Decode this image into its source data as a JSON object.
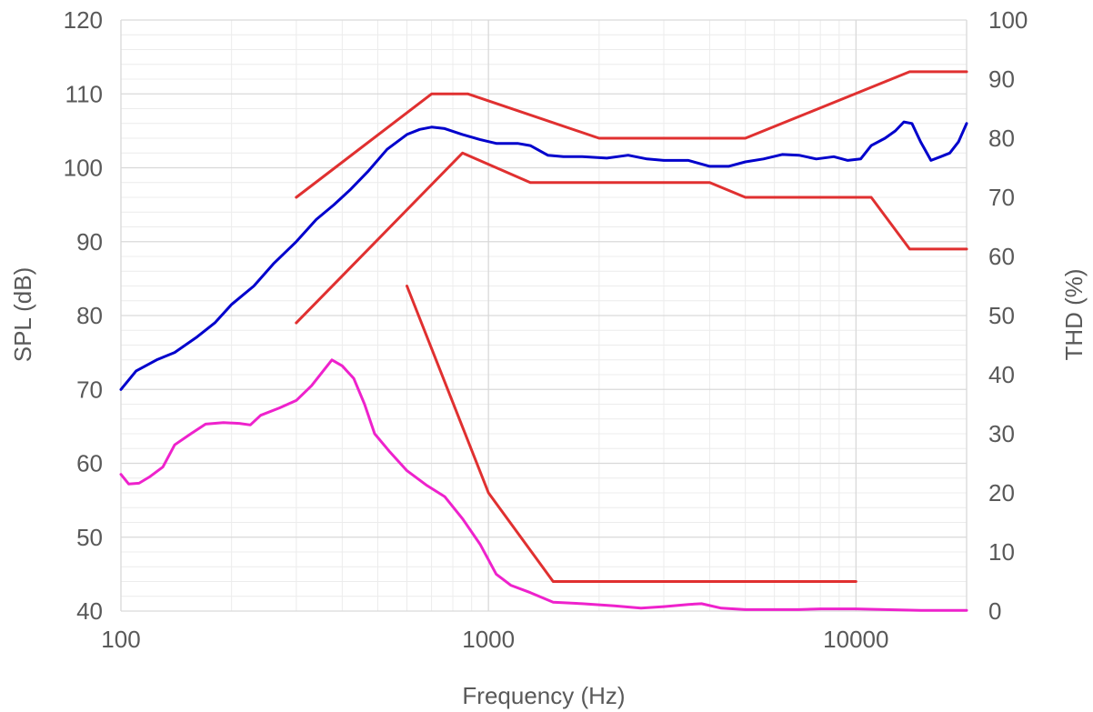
{
  "chart_data": {
    "type": "line",
    "xlabel": "Frequency (Hz)",
    "ylabel": "SPL (dB)",
    "y2label": "THD (%)",
    "x_scale": "log",
    "xlim": [
      100,
      20000
    ],
    "ylim": [
      40,
      120
    ],
    "y2lim": [
      0,
      100
    ],
    "x_ticks": [
      100,
      1000,
      10000
    ],
    "y_ticks": [
      40,
      50,
      60,
      70,
      80,
      90,
      100,
      110,
      120
    ],
    "y2_ticks": [
      0,
      10,
      20,
      30,
      40,
      50,
      60,
      70,
      80,
      90,
      100
    ],
    "grid": true,
    "series": [
      {
        "color": "#0000cc",
        "axis": "left",
        "points": [
          [
            100,
            70
          ],
          [
            110,
            72.5
          ],
          [
            125,
            74
          ],
          [
            140,
            75
          ],
          [
            160,
            77
          ],
          [
            180,
            79
          ],
          [
            200,
            81.5
          ],
          [
            230,
            84
          ],
          [
            260,
            87
          ],
          [
            300,
            90
          ],
          [
            340,
            93
          ],
          [
            380,
            95
          ],
          [
            420,
            97
          ],
          [
            470,
            99.5
          ],
          [
            530,
            102.5
          ],
          [
            600,
            104.5
          ],
          [
            650,
            105.2
          ],
          [
            700,
            105.5
          ],
          [
            760,
            105.3
          ],
          [
            850,
            104.5
          ],
          [
            950,
            103.8
          ],
          [
            1050,
            103.3
          ],
          [
            1200,
            103.3
          ],
          [
            1300,
            103
          ],
          [
            1450,
            101.7
          ],
          [
            1600,
            101.5
          ],
          [
            1800,
            101.5
          ],
          [
            2100,
            101.3
          ],
          [
            2400,
            101.7
          ],
          [
            2700,
            101.2
          ],
          [
            3000,
            101
          ],
          [
            3500,
            101
          ],
          [
            4000,
            100.2
          ],
          [
            4500,
            100.2
          ],
          [
            5000,
            100.8
          ],
          [
            5600,
            101.2
          ],
          [
            6300,
            101.8
          ],
          [
            7000,
            101.7
          ],
          [
            7800,
            101.2
          ],
          [
            8700,
            101.5
          ],
          [
            9500,
            101
          ],
          [
            10300,
            101.2
          ],
          [
            11000,
            103
          ],
          [
            12000,
            104
          ],
          [
            12800,
            105
          ],
          [
            13500,
            106.2
          ],
          [
            14200,
            106
          ],
          [
            15000,
            103.5
          ],
          [
            16000,
            101
          ],
          [
            17000,
            101.5
          ],
          [
            18000,
            102
          ],
          [
            19000,
            103.5
          ],
          [
            20000,
            106
          ]
        ]
      },
      {
        "color": "#ee22cc",
        "axis": "left",
        "points": [
          [
            100,
            58.5
          ],
          [
            105,
            57.2
          ],
          [
            112,
            57.3
          ],
          [
            120,
            58.2
          ],
          [
            130,
            59.5
          ],
          [
            140,
            62.5
          ],
          [
            155,
            64
          ],
          [
            170,
            65.3
          ],
          [
            190,
            65.5
          ],
          [
            210,
            65.4
          ],
          [
            225,
            65.2
          ],
          [
            240,
            66.5
          ],
          [
            270,
            67.5
          ],
          [
            300,
            68.5
          ],
          [
            330,
            70.5
          ],
          [
            355,
            72.5
          ],
          [
            375,
            74
          ],
          [
            400,
            73.2
          ],
          [
            430,
            71.5
          ],
          [
            460,
            68
          ],
          [
            490,
            64
          ],
          [
            540,
            61.5
          ],
          [
            600,
            59
          ],
          [
            680,
            57
          ],
          [
            760,
            55.5
          ],
          [
            850,
            52.5
          ],
          [
            950,
            49
          ],
          [
            1050,
            45
          ],
          [
            1150,
            43.5
          ],
          [
            1300,
            42.5
          ],
          [
            1500,
            41.2
          ],
          [
            1800,
            41
          ],
          [
            2200,
            40.7
          ],
          [
            2600,
            40.4
          ],
          [
            3000,
            40.6
          ],
          [
            3500,
            40.9
          ],
          [
            3800,
            41
          ],
          [
            4300,
            40.4
          ],
          [
            5000,
            40.2
          ],
          [
            6000,
            40.2
          ],
          [
            7000,
            40.2
          ],
          [
            8000,
            40.3
          ],
          [
            10000,
            40.3
          ],
          [
            12000,
            40.2
          ],
          [
            15000,
            40.1
          ],
          [
            20000,
            40.1
          ]
        ]
      },
      {
        "color": "#e03030",
        "axis": "left",
        "points": [
          [
            300,
            96
          ],
          [
            700,
            110
          ],
          [
            880,
            110
          ],
          [
            2000,
            104
          ],
          [
            5000,
            104
          ],
          [
            14000,
            113
          ],
          [
            20000,
            113
          ]
        ]
      },
      {
        "color": "#e03030",
        "axis": "left",
        "points": [
          [
            300,
            79
          ],
          [
            850,
            102
          ],
          [
            1300,
            98
          ],
          [
            4000,
            98
          ],
          [
            5000,
            96
          ],
          [
            11000,
            96
          ],
          [
            14000,
            89
          ],
          [
            20000,
            89
          ]
        ]
      },
      {
        "color": "#e03030",
        "axis": "right",
        "points": [
          [
            600,
            55
          ],
          [
            1000,
            20
          ],
          [
            1500,
            5
          ],
          [
            10000,
            5
          ]
        ]
      }
    ]
  }
}
